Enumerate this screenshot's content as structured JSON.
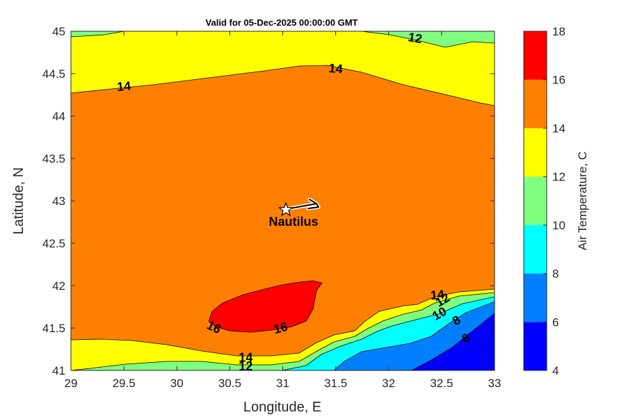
{
  "chart_data": {
    "type": "contour",
    "title": "Valid for 05-Dec-2025 00:00:00 GMT",
    "xlabel": "Longitude, E",
    "ylabel": "Latitude, N",
    "xlim": [
      29,
      33
    ],
    "ylim": [
      41,
      45
    ],
    "xticks": [
      "29",
      "29.5",
      "30",
      "30.5",
      "31",
      "31.5",
      "32",
      "32.5",
      "33"
    ],
    "yticks": [
      "41",
      "41.5",
      "42",
      "42.5",
      "43",
      "43.5",
      "44",
      "44.5",
      "45"
    ],
    "colorbar": {
      "label": "Air Temperature, C",
      "ticks": [
        "4",
        "6",
        "8",
        "10",
        "12",
        "14",
        "16",
        "18"
      ],
      "levels": [
        4,
        6,
        8,
        10,
        12,
        14,
        16,
        18
      ],
      "colors": [
        "#0000ff",
        "#0080ff",
        "#00ffff",
        "#80ff80",
        "#ffff00",
        "#ff8000",
        "#ff0000",
        "#800000"
      ]
    },
    "contour_labels": [
      {
        "text": "12",
        "lon": 32.25,
        "lat": 44.92,
        "rot": 10
      },
      {
        "text": "14",
        "lon": 29.5,
        "lat": 44.35,
        "rot": -5
      },
      {
        "text": "14",
        "lon": 31.5,
        "lat": 44.56,
        "rot": 5
      },
      {
        "text": "16",
        "lon": 30.35,
        "lat": 41.51,
        "rot": 25
      },
      {
        "text": "16",
        "lon": 30.98,
        "lat": 41.5,
        "rot": -15
      },
      {
        "text": "14",
        "lon": 30.65,
        "lat": 41.15,
        "rot": 0
      },
      {
        "text": "12",
        "lon": 30.65,
        "lat": 41.05,
        "rot": 0
      },
      {
        "text": "14",
        "lon": 32.46,
        "lat": 41.89,
        "rot": -5
      },
      {
        "text": "12",
        "lon": 32.51,
        "lat": 41.83,
        "rot": -30
      },
      {
        "text": "10",
        "lon": 32.48,
        "lat": 41.67,
        "rot": -30
      },
      {
        "text": "8",
        "lon": 32.64,
        "lat": 41.59,
        "rot": -30
      },
      {
        "text": "6",
        "lon": 32.73,
        "lat": 41.38,
        "rot": -30
      }
    ],
    "station": {
      "name": "Nautilus",
      "lon": 31.03,
      "lat": 42.89
    }
  }
}
